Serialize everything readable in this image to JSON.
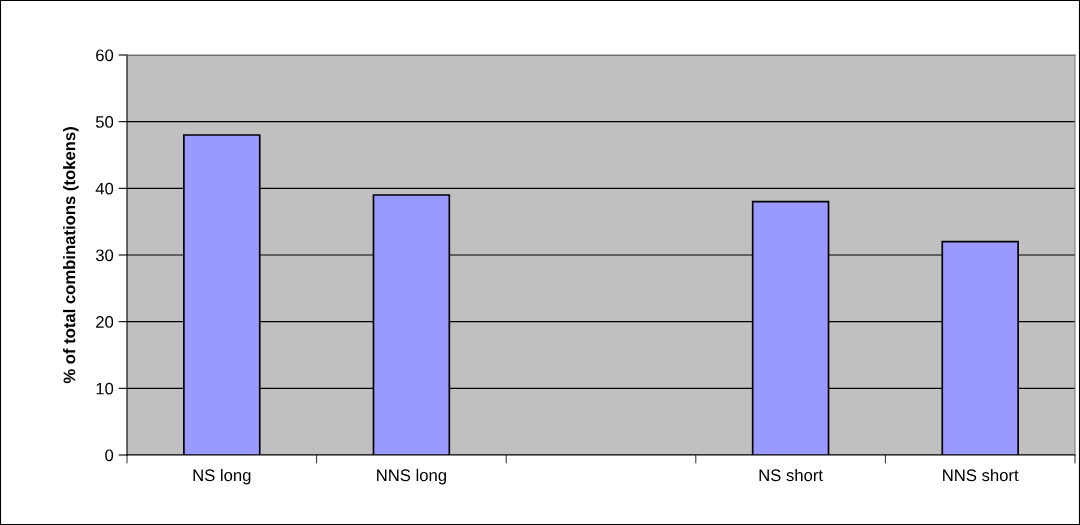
{
  "chart_data": {
    "type": "bar",
    "ylabel": "% of total combinations (tokens)",
    "categories": [
      "NS long",
      "NNS long",
      null,
      "NS short",
      "NNS short"
    ],
    "values": [
      48,
      39,
      null,
      38,
      32
    ],
    "color": "#9999ff",
    "ylim": [
      0,
      60
    ],
    "yticks": [
      0,
      10,
      20,
      30,
      40,
      50,
      60
    ],
    "grid": "y"
  }
}
